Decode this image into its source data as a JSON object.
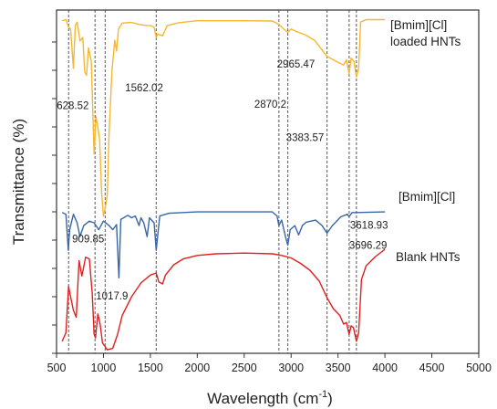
{
  "chart_data": {
    "type": "line",
    "xlabel": "Wavelength (cm",
    "xlabel_superscript": "-1",
    "xlabel_close": ")",
    "ylabel": "Transmittance (%)",
    "xlim": [
      500,
      5000
    ],
    "xticks": [
      500,
      1000,
      1500,
      2000,
      2500,
      3000,
      3500,
      4000,
      4500,
      5000
    ],
    "ylim": [
      0,
      10
    ],
    "y_tick_labels_shown": false,
    "grid": false,
    "reference_lines": [
      628.52,
      909.85,
      1017.9,
      1562.02,
      2870.2,
      2965.47,
      3383.57,
      3618.93,
      3696.29
    ],
    "annotations": [
      {
        "text": "628.52",
        "x": 628.52,
        "y": 7.12
      },
      {
        "text": "1562.02",
        "x": 1562.02,
        "y": 7.63
      },
      {
        "text": "2870.2",
        "x": 2870.2,
        "y": 7.15
      },
      {
        "text": "2965.47",
        "x": 2965.47,
        "y": 8.33
      },
      {
        "text": "3383.57",
        "x": 3383.57,
        "y": 6.18
      },
      {
        "text": "909.85",
        "x": 909.85,
        "y": 3.23
      },
      {
        "text": "1017.9",
        "x": 1017.9,
        "y": 1.57
      },
      {
        "text": "3618.93",
        "x": 3618.93,
        "y": 3.63
      },
      {
        "text": "3696.29",
        "x": 3696.29,
        "y": 3.04
      }
    ],
    "series": [
      {
        "name": "[Bmim][Cl] loaded HNTs",
        "label_lines": [
          "[Bmim][Cl]",
          "loaded HNTs"
        ],
        "color": "#f5b731",
        "points": [
          [
            560,
            9.69
          ],
          [
            600,
            9.72
          ],
          [
            628,
            9.5
          ],
          [
            650,
            9.45
          ],
          [
            680,
            8.3
          ],
          [
            700,
            9.55
          ],
          [
            720,
            9.65
          ],
          [
            750,
            9.1
          ],
          [
            780,
            9.2
          ],
          [
            800,
            8.2
          ],
          [
            820,
            8.1
          ],
          [
            840,
            8.9
          ],
          [
            870,
            8.5
          ],
          [
            900,
            5.8
          ],
          [
            920,
            6.9
          ],
          [
            940,
            6.6
          ],
          [
            960,
            6.2
          ],
          [
            980,
            4.7
          ],
          [
            1000,
            4.0
          ],
          [
            1017,
            4.2
          ],
          [
            1040,
            4.6
          ],
          [
            1060,
            6.4
          ],
          [
            1090,
            8.2
          ],
          [
            1120,
            9.12
          ],
          [
            1140,
            8.8
          ],
          [
            1160,
            9.45
          ],
          [
            1200,
            9.62
          ],
          [
            1300,
            9.64
          ],
          [
            1380,
            9.58
          ],
          [
            1460,
            9.55
          ],
          [
            1500,
            9.55
          ],
          [
            1540,
            9.5
          ],
          [
            1562,
            9.2
          ],
          [
            1580,
            9.3
          ],
          [
            1630,
            9.25
          ],
          [
            1680,
            9.55
          ],
          [
            1800,
            9.63
          ],
          [
            2000,
            9.69
          ],
          [
            2500,
            9.69
          ],
          [
            2800,
            9.68
          ],
          [
            2870,
            9.58
          ],
          [
            2920,
            9.45
          ],
          [
            2965,
            9.35
          ],
          [
            3000,
            9.45
          ],
          [
            3050,
            9.38
          ],
          [
            3150,
            9.28
          ],
          [
            3250,
            9.12
          ],
          [
            3383,
            8.65
          ],
          [
            3450,
            8.55
          ],
          [
            3520,
            8.45
          ],
          [
            3560,
            8.4
          ],
          [
            3590,
            8.55
          ],
          [
            3618,
            8.15
          ],
          [
            3640,
            8.6
          ],
          [
            3670,
            8.5
          ],
          [
            3696,
            8.05
          ],
          [
            3720,
            8.3
          ],
          [
            3740,
            9.65
          ],
          [
            3800,
            9.72
          ],
          [
            4000,
            9.72
          ]
        ]
      },
      {
        "name": "[Bmim][Cl]",
        "label_lines": [
          "[Bmim][Cl]"
        ],
        "color": "#3866a8",
        "points": [
          [
            560,
            4.1
          ],
          [
            600,
            4.05
          ],
          [
            625,
            3.0
          ],
          [
            640,
            3.6
          ],
          [
            680,
            4.05
          ],
          [
            720,
            3.8
          ],
          [
            750,
            3.4
          ],
          [
            790,
            3.72
          ],
          [
            850,
            3.85
          ],
          [
            900,
            3.8
          ],
          [
            950,
            3.6
          ],
          [
            1000,
            3.85
          ],
          [
            1060,
            3.72
          ],
          [
            1100,
            3.6
          ],
          [
            1140,
            3.75
          ],
          [
            1165,
            2.2
          ],
          [
            1185,
            3.9
          ],
          [
            1260,
            4.02
          ],
          [
            1300,
            3.95
          ],
          [
            1340,
            4.0
          ],
          [
            1380,
            3.72
          ],
          [
            1400,
            3.95
          ],
          [
            1430,
            3.8
          ],
          [
            1465,
            3.4
          ],
          [
            1490,
            3.95
          ],
          [
            1540,
            3.8
          ],
          [
            1562,
            3.0
          ],
          [
            1575,
            3.35
          ],
          [
            1600,
            4.0
          ],
          [
            1700,
            4.08
          ],
          [
            2000,
            4.12
          ],
          [
            2500,
            4.12
          ],
          [
            2800,
            4.12
          ],
          [
            2850,
            4.0
          ],
          [
            2870,
            3.72
          ],
          [
            2900,
            3.88
          ],
          [
            2940,
            3.4
          ],
          [
            2965,
            3.15
          ],
          [
            2990,
            3.6
          ],
          [
            3040,
            3.72
          ],
          [
            3080,
            3.45
          ],
          [
            3120,
            3.72
          ],
          [
            3160,
            3.82
          ],
          [
            3260,
            3.88
          ],
          [
            3330,
            3.72
          ],
          [
            3383,
            3.5
          ],
          [
            3440,
            3.72
          ],
          [
            3530,
            3.98
          ],
          [
            3600,
            4.05
          ],
          [
            3618,
            3.98
          ],
          [
            3650,
            4.1
          ],
          [
            3700,
            4.1
          ],
          [
            4000,
            4.12
          ]
        ]
      },
      {
        "name": "Blank HNTs",
        "label_lines": [
          "Blank HNTs"
        ],
        "color": "#e02020",
        "points": [
          [
            560,
            0.35
          ],
          [
            600,
            0.6
          ],
          [
            628,
            1.95
          ],
          [
            650,
            1.65
          ],
          [
            680,
            1.25
          ],
          [
            710,
            1.05
          ],
          [
            740,
            2.7
          ],
          [
            770,
            2.25
          ],
          [
            810,
            2.8
          ],
          [
            850,
            2.75
          ],
          [
            880,
            1.75
          ],
          [
            900,
            0.55
          ],
          [
            915,
            0.45
          ],
          [
            940,
            1.15
          ],
          [
            965,
            0.85
          ],
          [
            990,
            0.3
          ],
          [
            1017,
            0.2
          ],
          [
            1040,
            0.1
          ],
          [
            1100,
            0.15
          ],
          [
            1150,
            0.55
          ],
          [
            1200,
            1.1
          ],
          [
            1300,
            1.65
          ],
          [
            1400,
            2.05
          ],
          [
            1500,
            2.28
          ],
          [
            1562,
            2.34
          ],
          [
            1590,
            2.08
          ],
          [
            1630,
            2.02
          ],
          [
            1660,
            2.28
          ],
          [
            1750,
            2.58
          ],
          [
            1850,
            2.75
          ],
          [
            2000,
            2.85
          ],
          [
            2200,
            2.9
          ],
          [
            2500,
            2.92
          ],
          [
            2800,
            2.9
          ],
          [
            2900,
            2.85
          ],
          [
            3000,
            2.78
          ],
          [
            3100,
            2.62
          ],
          [
            3200,
            2.42
          ],
          [
            3300,
            2.1
          ],
          [
            3383,
            1.62
          ],
          [
            3450,
            1.3
          ],
          [
            3520,
            1.1
          ],
          [
            3560,
            0.85
          ],
          [
            3590,
            0.9
          ],
          [
            3618,
            0.55
          ],
          [
            3640,
            0.8
          ],
          [
            3665,
            0.75
          ],
          [
            3696,
            0.35
          ],
          [
            3720,
            0.6
          ],
          [
            3750,
            2.15
          ],
          [
            3800,
            2.55
          ],
          [
            3900,
            2.82
          ],
          [
            4000,
            3.03
          ]
        ]
      }
    ]
  }
}
